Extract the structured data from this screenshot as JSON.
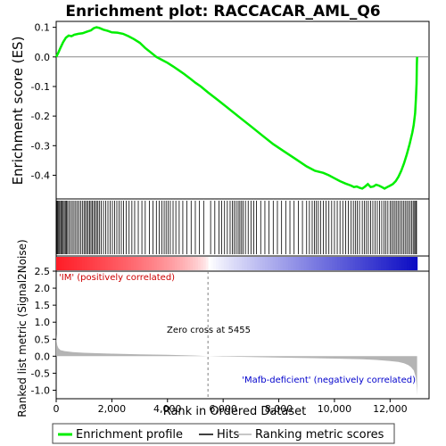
{
  "title": "Enrichment plot: RACCACAR_AML_Q6",
  "colors": {
    "es_line": "#00ee00",
    "hits": "#000000",
    "metric_fill": "#b4b4b4",
    "pos_label": "#cc0000",
    "neg_label": "#0000cc",
    "zero_line": "#808080"
  },
  "chart_data": [
    {
      "type": "line",
      "panel": "enrichment-score",
      "ylabel": "Enrichment score (ES)",
      "xlim": [
        0,
        13400
      ],
      "ylim": [
        -0.48,
        0.12
      ],
      "yticks": [
        0.1,
        0.0,
        -0.1,
        -0.2,
        -0.3,
        -0.4
      ],
      "ytick_labels": [
        "0.1",
        "0.0",
        "-0.1",
        "-0.2",
        "-0.3",
        "-0.4"
      ],
      "series": [
        {
          "name": "Enrichment profile",
          "x": [
            0,
            80,
            150,
            250,
            350,
            450,
            550,
            650,
            800,
            950,
            1100,
            1250,
            1350,
            1450,
            1550,
            1700,
            1850,
            2000,
            2200,
            2400,
            2600,
            2800,
            3000,
            3200,
            3400,
            3600,
            3800,
            4000,
            4200,
            4400,
            4600,
            4800,
            5000,
            5200,
            5455,
            5800,
            6200,
            6600,
            7000,
            7400,
            7800,
            8200,
            8600,
            9000,
            9300,
            9600,
            9800,
            10000,
            10200,
            10400,
            10600,
            10700,
            10800,
            10900,
            11000,
            11100,
            11200,
            11300,
            11400,
            11500,
            11600,
            11700,
            11800,
            11900,
            12000,
            12100,
            12200,
            12300,
            12400,
            12500,
            12600,
            12700,
            12800,
            12850,
            12900,
            12930,
            12950,
            12960,
            12970
          ],
          "y": [
            0.0,
            0.015,
            0.03,
            0.05,
            0.065,
            0.072,
            0.07,
            0.075,
            0.078,
            0.08,
            0.085,
            0.09,
            0.097,
            0.1,
            0.098,
            0.092,
            0.088,
            0.083,
            0.082,
            0.078,
            0.07,
            0.06,
            0.048,
            0.03,
            0.015,
            0.0,
            -0.01,
            -0.02,
            -0.032,
            -0.045,
            -0.058,
            -0.072,
            -0.087,
            -0.1,
            -0.12,
            -0.145,
            -0.175,
            -0.205,
            -0.235,
            -0.265,
            -0.295,
            -0.32,
            -0.345,
            -0.37,
            -0.385,
            -0.392,
            -0.4,
            -0.41,
            -0.42,
            -0.428,
            -0.435,
            -0.44,
            -0.438,
            -0.442,
            -0.445,
            -0.438,
            -0.43,
            -0.44,
            -0.438,
            -0.432,
            -0.435,
            -0.44,
            -0.445,
            -0.44,
            -0.435,
            -0.43,
            -0.42,
            -0.405,
            -0.385,
            -0.36,
            -0.33,
            -0.295,
            -0.255,
            -0.23,
            -0.19,
            -0.14,
            -0.09,
            -0.03,
            0.0
          ]
        }
      ]
    },
    {
      "type": "bar",
      "panel": "hits",
      "series": [
        {
          "name": "Hits",
          "x": [
            30,
            60,
            95,
            130,
            170,
            210,
            250,
            290,
            330,
            370,
            410,
            460,
            520,
            580,
            640,
            700,
            760,
            820,
            880,
            940,
            1000,
            1050,
            1100,
            1150,
            1200,
            1250,
            1300,
            1350,
            1400,
            1450,
            1500,
            1560,
            1620,
            1700,
            1780,
            1860,
            1940,
            2020,
            2100,
            2180,
            2260,
            2340,
            2420,
            2520,
            2620,
            2720,
            2820,
            2950,
            3080,
            3200,
            3350,
            3480,
            3600,
            3700,
            3800,
            3880,
            3950,
            4020,
            4100,
            4200,
            4300,
            4420,
            4550,
            4700,
            4850,
            5000,
            5150,
            5300,
            5550,
            5700,
            5850,
            5950,
            6050,
            6150,
            6250,
            6330,
            6400,
            6470,
            6540,
            6600,
            6660,
            6720,
            6800,
            6900,
            7000,
            7100,
            7200,
            7350,
            7500,
            7650,
            7800,
            7950,
            8100,
            8250,
            8400,
            8550,
            8700,
            8850,
            9000,
            9100,
            9200,
            9280,
            9350,
            9420,
            9500,
            9600,
            9700,
            9800,
            9900,
            10000,
            10100,
            10200,
            10300,
            10400,
            10500,
            10600,
            10680,
            10750,
            10820,
            10900,
            11000,
            11080,
            11150,
            11220,
            11300,
            11380,
            11460,
            11540,
            11620,
            11700,
            11780,
            11850,
            11920,
            12000,
            12060,
            12120,
            12180,
            12240,
            12300,
            12360,
            12420,
            12480,
            12540,
            12600,
            12660,
            12720,
            12780,
            12830,
            12880,
            12920,
            12950
          ]
        }
      ]
    },
    {
      "type": "area",
      "panel": "ranked-metric",
      "xlabel": "Rank in Ordered Dataset",
      "ylabel": "Ranked list metric (Signal2Noise)",
      "xlim": [
        0,
        13400
      ],
      "ylim": [
        -1.25,
        2.5
      ],
      "xticks": [
        0,
        2000,
        4000,
        6000,
        8000,
        10000,
        12000
      ],
      "xtick_labels": [
        "0",
        "2,000",
        "4,000",
        "6,000",
        "8,000",
        "10,000",
        "12,000"
      ],
      "yticks": [
        2.5,
        2.0,
        1.5,
        1.0,
        0.5,
        0.0,
        -0.5,
        -1.0
      ],
      "ytick_labels": [
        "2.5",
        "2.0",
        "1.5",
        "1.0",
        "0.5",
        "0.0",
        "-0.5",
        "-1.0"
      ],
      "zero_cross": 5455,
      "series": [
        {
          "name": "Ranking metric scores",
          "x": [
            0,
            15,
            40,
            80,
            150,
            300,
            600,
            1000,
            2000,
            3000,
            4000,
            5000,
            5455,
            6000,
            7000,
            8000,
            9000,
            10000,
            11000,
            11500,
            12000,
            12300,
            12500,
            12650,
            12750,
            12850,
            12920,
            12950,
            12970
          ],
          "y": [
            0.65,
            0.45,
            0.32,
            0.24,
            0.18,
            0.15,
            0.12,
            0.1,
            0.075,
            0.055,
            0.04,
            0.02,
            0.0,
            -0.01,
            -0.025,
            -0.04,
            -0.055,
            -0.07,
            -0.09,
            -0.11,
            -0.14,
            -0.17,
            -0.21,
            -0.26,
            -0.32,
            -0.42,
            -0.6,
            -0.85,
            -1.15
          ]
        }
      ]
    }
  ],
  "annotations": {
    "pos_label": "'IM' (positively correlated)",
    "neg_label": "'Mafb-deficient' (negatively correlated)",
    "zero_cross": "Zero cross at 5455"
  },
  "legend": [
    {
      "label": "Enrichment profile",
      "kind": "es"
    },
    {
      "label": "Hits",
      "kind": "hits"
    },
    {
      "label": "Ranking metric scores",
      "kind": "metric"
    }
  ]
}
